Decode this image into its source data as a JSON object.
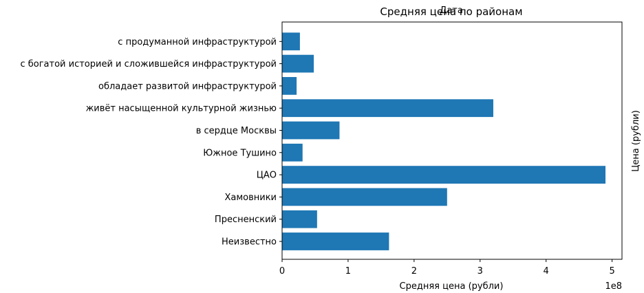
{
  "chart_data": {
    "type": "bar",
    "orientation": "horizontal",
    "title": "Средняя цена по районам",
    "overlay_text": "Дата",
    "xlabel": "Средняя цена (рубли)",
    "ylabel": "",
    "right_label": "Цена (рубли)",
    "x_offset_text": "1e8",
    "xlim": [
      0,
      5.15
    ],
    "x_ticks": [
      0,
      1,
      2,
      3,
      4,
      5
    ],
    "unit_multiplier": 100000000,
    "grid": false,
    "legend": "none",
    "colors": {
      "bar": "#1f77b4",
      "axis": "#000000"
    },
    "categories": [
      "Неизвестно",
      "Пресненский",
      "Хамовники",
      "ЦАО",
      "Южное Тушино",
      "в сердце Москвы",
      "живёт насыщенной культурной жизнью",
      "обладает развитой инфраструктурой",
      "с богатой историей и сложившейся инфраструктурой",
      "с продуманной инфраструктурой"
    ],
    "values": [
      1.62,
      0.53,
      2.5,
      4.9,
      0.31,
      0.87,
      3.2,
      0.22,
      0.48,
      0.27
    ]
  }
}
